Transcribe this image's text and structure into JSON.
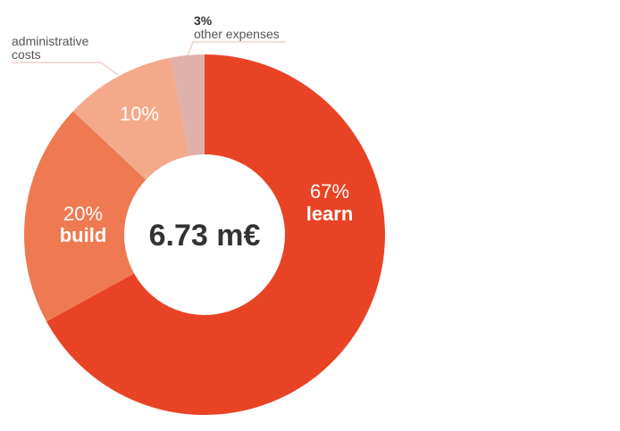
{
  "chart_data": {
    "type": "pie",
    "donut": true,
    "center_label": "6.73 m€",
    "slices": [
      {
        "label": "learn",
        "percent_label": "67%",
        "value": 67,
        "color": "#e84325",
        "label_position": "inside"
      },
      {
        "label": "build",
        "percent_label": "20%",
        "value": 20,
        "color": "#ef7a52",
        "label_position": "inside"
      },
      {
        "label": "administrative costs",
        "label_lines": [
          "administrative",
          "costs"
        ],
        "percent_label": "10%",
        "value": 10,
        "color": "#f4a98a",
        "label_position": "outside-callout"
      },
      {
        "label": "other expenses",
        "percent_label": "3%",
        "value": 3,
        "color": "#e0b0aa",
        "label_position": "outside-callout"
      }
    ],
    "text_color": "#333333",
    "callout_color": "#efc7c0"
  }
}
